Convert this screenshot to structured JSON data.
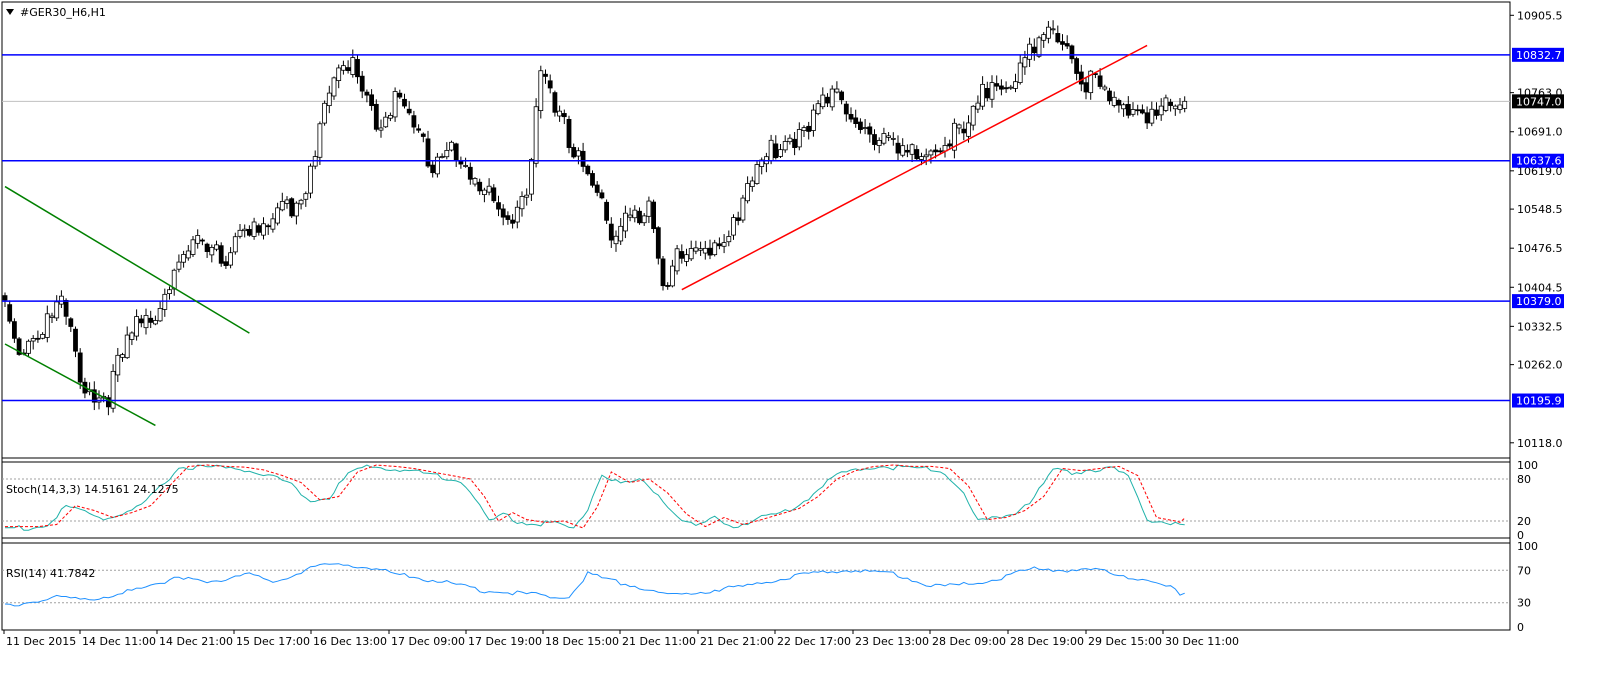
{
  "colors": {
    "background": "#ffffff",
    "frame": "#000000",
    "level_line": "#0000ff",
    "level_label_bg": "#0000ff",
    "level_label_text": "#ffffff",
    "current_price_line": "#c0c0c0",
    "current_price_bg": "#000000",
    "channel_line": "#008000",
    "trend_line": "#ff0000",
    "stoch_main": "#20b2aa",
    "stoch_signal": "#ff0000",
    "rsi_line": "#1e90ff",
    "grid_dotted": "#a0a0a0"
  },
  "chart_data": [
    {
      "type": "candlestick",
      "title": "#GER30_H6,H1",
      "ylim": [
        10090,
        10930
      ],
      "y_ticks": [
        "10905.5",
        "10763.0",
        "10691.0",
        "10619.0",
        "10548.5",
        "10476.5",
        "10404.5",
        "10332.5",
        "10262.0",
        "10118.0"
      ],
      "x_labels": [
        "11 Dec 2015",
        "14 Dec 11:00",
        "14 Dec 21:00",
        "15 Dec 17:00",
        "16 Dec 13:00",
        "17 Dec 09:00",
        "17 Dec 19:00",
        "18 Dec 15:00",
        "21 Dec 11:00",
        "21 Dec 21:00",
        "22 Dec 17:00",
        "23 Dec 13:00",
        "28 Dec 09:00",
        "28 Dec 19:00",
        "29 Dec 15:00",
        "30 Dec 11:00"
      ],
      "levels": [
        {
          "value": 10832.7,
          "label": "10832.7"
        },
        {
          "value": 10637.6,
          "label": "10637.6"
        },
        {
          "value": 10379.0,
          "label": "10379.0"
        },
        {
          "value": 10195.9,
          "label": "10195.9"
        }
      ],
      "current_price": {
        "value": 10747.0,
        "label": "10747.0"
      },
      "anchors": [
        [
          0,
          10390
        ],
        [
          3,
          10310
        ],
        [
          8,
          10345
        ],
        [
          12,
          10385
        ],
        [
          16,
          10260
        ],
        [
          19,
          10215
        ],
        [
          22,
          10225
        ],
        [
          27,
          10330
        ],
        [
          32,
          10375
        ],
        [
          36,
          10460
        ],
        [
          41,
          10490
        ],
        [
          46,
          10470
        ],
        [
          51,
          10540
        ],
        [
          55,
          10510
        ],
        [
          59,
          10560
        ],
        [
          63,
          10580
        ],
        [
          67,
          10720
        ],
        [
          71,
          10810
        ],
        [
          75,
          10825
        ],
        [
          79,
          10730
        ],
        [
          83,
          10760
        ],
        [
          87,
          10710
        ],
        [
          91,
          10650
        ],
        [
          95,
          10690
        ],
        [
          99,
          10610
        ],
        [
          103,
          10580
        ],
        [
          107,
          10550
        ],
        [
          111,
          10600
        ],
        [
          114,
          10800
        ],
        [
          118,
          10720
        ],
        [
          122,
          10670
        ],
        [
          126,
          10600
        ],
        [
          129,
          10500
        ],
        [
          133,
          10540
        ],
        [
          137,
          10590
        ],
        [
          140,
          10440
        ],
        [
          144,
          10470
        ],
        [
          148,
          10480
        ],
        [
          152,
          10510
        ],
        [
          156,
          10560
        ],
        [
          160,
          10630
        ],
        [
          164,
          10680
        ],
        [
          168,
          10700
        ],
        [
          172,
          10740
        ],
        [
          176,
          10760
        ],
        [
          180,
          10750
        ],
        [
          184,
          10710
        ],
        [
          188,
          10680
        ],
        [
          192,
          10650
        ],
        [
          196,
          10670
        ],
        [
          200,
          10690
        ],
        [
          204,
          10700
        ],
        [
          207,
          10740
        ],
        [
          210,
          10820
        ],
        [
          214,
          10800
        ],
        [
          218,
          10840
        ],
        [
          222,
          10870
        ],
        [
          226,
          10880
        ],
        [
          229,
          10800
        ],
        [
          232,
          10800
        ],
        [
          235,
          10747
        ]
      ],
      "channel_lines": [
        {
          "from": [
            0,
            10590
          ],
          "to": [
            52,
            10320
          ]
        },
        {
          "from": [
            0,
            10300
          ],
          "to": [
            32,
            10150
          ]
        }
      ],
      "trend_line": {
        "from": [
          144,
          10400
        ],
        "to": [
          243,
          10850
        ]
      }
    },
    {
      "type": "line",
      "title": "Stoch(14,3,3) 14.5161 24.1275",
      "ylim": [
        0,
        100
      ],
      "y_ticks": [
        "100",
        "80",
        "20",
        "0"
      ],
      "levels": [
        80,
        20
      ],
      "main_anchors": [
        [
          0,
          12
        ],
        [
          5,
          12
        ],
        [
          9,
          15
        ],
        [
          13,
          42
        ],
        [
          17,
          35
        ],
        [
          21,
          25
        ],
        [
          25,
          32
        ],
        [
          29,
          42
        ],
        [
          33,
          70
        ],
        [
          37,
          98
        ],
        [
          41,
          100
        ],
        [
          45,
          98
        ],
        [
          49,
          97
        ],
        [
          53,
          93
        ],
        [
          57,
          85
        ],
        [
          61,
          75
        ],
        [
          65,
          50
        ],
        [
          69,
          55
        ],
        [
          73,
          90
        ],
        [
          77,
          100
        ],
        [
          81,
          98
        ],
        [
          85,
          95
        ],
        [
          89,
          90
        ],
        [
          93,
          85
        ],
        [
          97,
          80
        ],
        [
          100,
          55
        ],
        [
          103,
          20
        ],
        [
          106,
          32
        ],
        [
          109,
          22
        ],
        [
          113,
          18
        ],
        [
          117,
          20
        ],
        [
          121,
          10
        ],
        [
          124,
          40
        ],
        [
          127,
          90
        ],
        [
          131,
          75
        ],
        [
          135,
          80
        ],
        [
          139,
          60
        ],
        [
          143,
          30
        ],
        [
          147,
          12
        ],
        [
          151,
          25
        ],
        [
          155,
          15
        ],
        [
          159,
          22
        ],
        [
          163,
          30
        ],
        [
          167,
          38
        ],
        [
          171,
          55
        ],
        [
          175,
          80
        ],
        [
          179,
          92
        ],
        [
          183,
          98
        ],
        [
          187,
          100
        ],
        [
          191,
          98
        ],
        [
          195,
          98
        ],
        [
          199,
          95
        ],
        [
          203,
          70
        ],
        [
          207,
          22
        ],
        [
          211,
          25
        ],
        [
          215,
          35
        ],
        [
          219,
          55
        ],
        [
          223,
          95
        ],
        [
          227,
          92
        ],
        [
          231,
          95
        ],
        [
          235,
          98
        ],
        [
          239,
          85
        ],
        [
          243,
          25
        ],
        [
          247,
          20
        ],
        [
          250,
          14.5161
        ]
      ],
      "signal_lag": 2,
      "signal_last": 24.1275
    },
    {
      "type": "line",
      "title": "RSI(14) 41.7842",
      "ylim": [
        0,
        100
      ],
      "y_ticks": [
        "100",
        "70",
        "30",
        "0"
      ],
      "levels": [
        70,
        30
      ],
      "anchors": [
        [
          0,
          30
        ],
        [
          8,
          32
        ],
        [
          12,
          40
        ],
        [
          16,
          38
        ],
        [
          20,
          34
        ],
        [
          24,
          40
        ],
        [
          28,
          50
        ],
        [
          32,
          56
        ],
        [
          36,
          60
        ],
        [
          40,
          60
        ],
        [
          44,
          58
        ],
        [
          48,
          62
        ],
        [
          52,
          66
        ],
        [
          56,
          58
        ],
        [
          60,
          62
        ],
        [
          64,
          72
        ],
        [
          68,
          78
        ],
        [
          72,
          79
        ],
        [
          76,
          76
        ],
        [
          80,
          72
        ],
        [
          84,
          66
        ],
        [
          88,
          62
        ],
        [
          92,
          58
        ],
        [
          96,
          54
        ],
        [
          100,
          48
        ],
        [
          104,
          45
        ],
        [
          108,
          44
        ],
        [
          112,
          42
        ],
        [
          116,
          40
        ],
        [
          120,
          38
        ],
        [
          124,
          68
        ],
        [
          128,
          60
        ],
        [
          132,
          55
        ],
        [
          136,
          50
        ],
        [
          140,
          42
        ],
        [
          144,
          40
        ],
        [
          148,
          45
        ],
        [
          152,
          48
        ],
        [
          156,
          50
        ],
        [
          160,
          55
        ],
        [
          164,
          60
        ],
        [
          168,
          64
        ],
        [
          172,
          68
        ],
        [
          176,
          70
        ],
        [
          180,
          72
        ],
        [
          184,
          70
        ],
        [
          188,
          68
        ],
        [
          192,
          62
        ],
        [
          196,
          55
        ],
        [
          200,
          52
        ],
        [
          204,
          54
        ],
        [
          208,
          58
        ],
        [
          212,
          62
        ],
        [
          216,
          70
        ],
        [
          220,
          75
        ],
        [
          224,
          72
        ],
        [
          228,
          70
        ],
        [
          232,
          72
        ],
        [
          236,
          68
        ],
        [
          240,
          62
        ],
        [
          244,
          55
        ],
        [
          248,
          50
        ],
        [
          250,
          41.7842
        ]
      ]
    }
  ]
}
